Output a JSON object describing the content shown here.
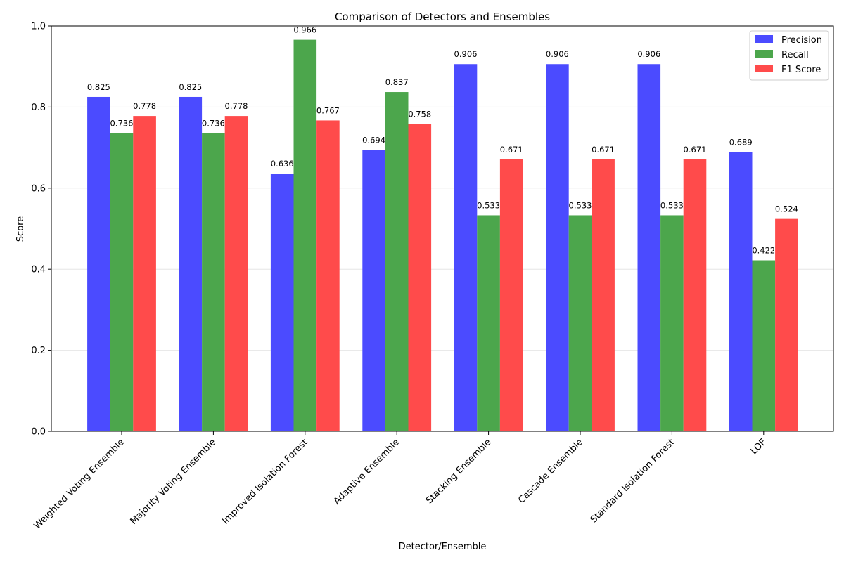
{
  "chart_data": {
    "type": "bar",
    "title": "Comparison of Detectors and Ensembles",
    "xlabel": "Detector/Ensemble",
    "ylabel": "Score",
    "ylim": [
      0,
      1.0
    ],
    "yticks": [
      "0.0",
      "0.2",
      "0.4",
      "0.6",
      "0.8",
      "1.0"
    ],
    "ytick_values": [
      0,
      0.2,
      0.4,
      0.6,
      0.8,
      1.0
    ],
    "grid": "horizontal",
    "legend_position": "top-right",
    "categories": [
      "Weighted Voting Ensemble",
      "Majority Voting Ensemble",
      "Improved Isolation Forest",
      "Adaptive Ensemble",
      "Stacking Ensemble",
      "Cascade Ensemble",
      "Standard Isolation Forest",
      "LOF"
    ],
    "series": [
      {
        "name": "Precision",
        "color": "#4b4bff",
        "values": [
          0.825,
          0.825,
          0.636,
          0.694,
          0.906,
          0.906,
          0.906,
          0.689
        ]
      },
      {
        "name": "Recall",
        "color": "#4ca64c",
        "values": [
          0.736,
          0.736,
          0.966,
          0.837,
          0.533,
          0.533,
          0.533,
          0.422
        ]
      },
      {
        "name": "F1 Score",
        "color": "#ff4b4b",
        "values": [
          0.778,
          0.778,
          0.767,
          0.758,
          0.671,
          0.671,
          0.671,
          0.524
        ]
      }
    ]
  }
}
